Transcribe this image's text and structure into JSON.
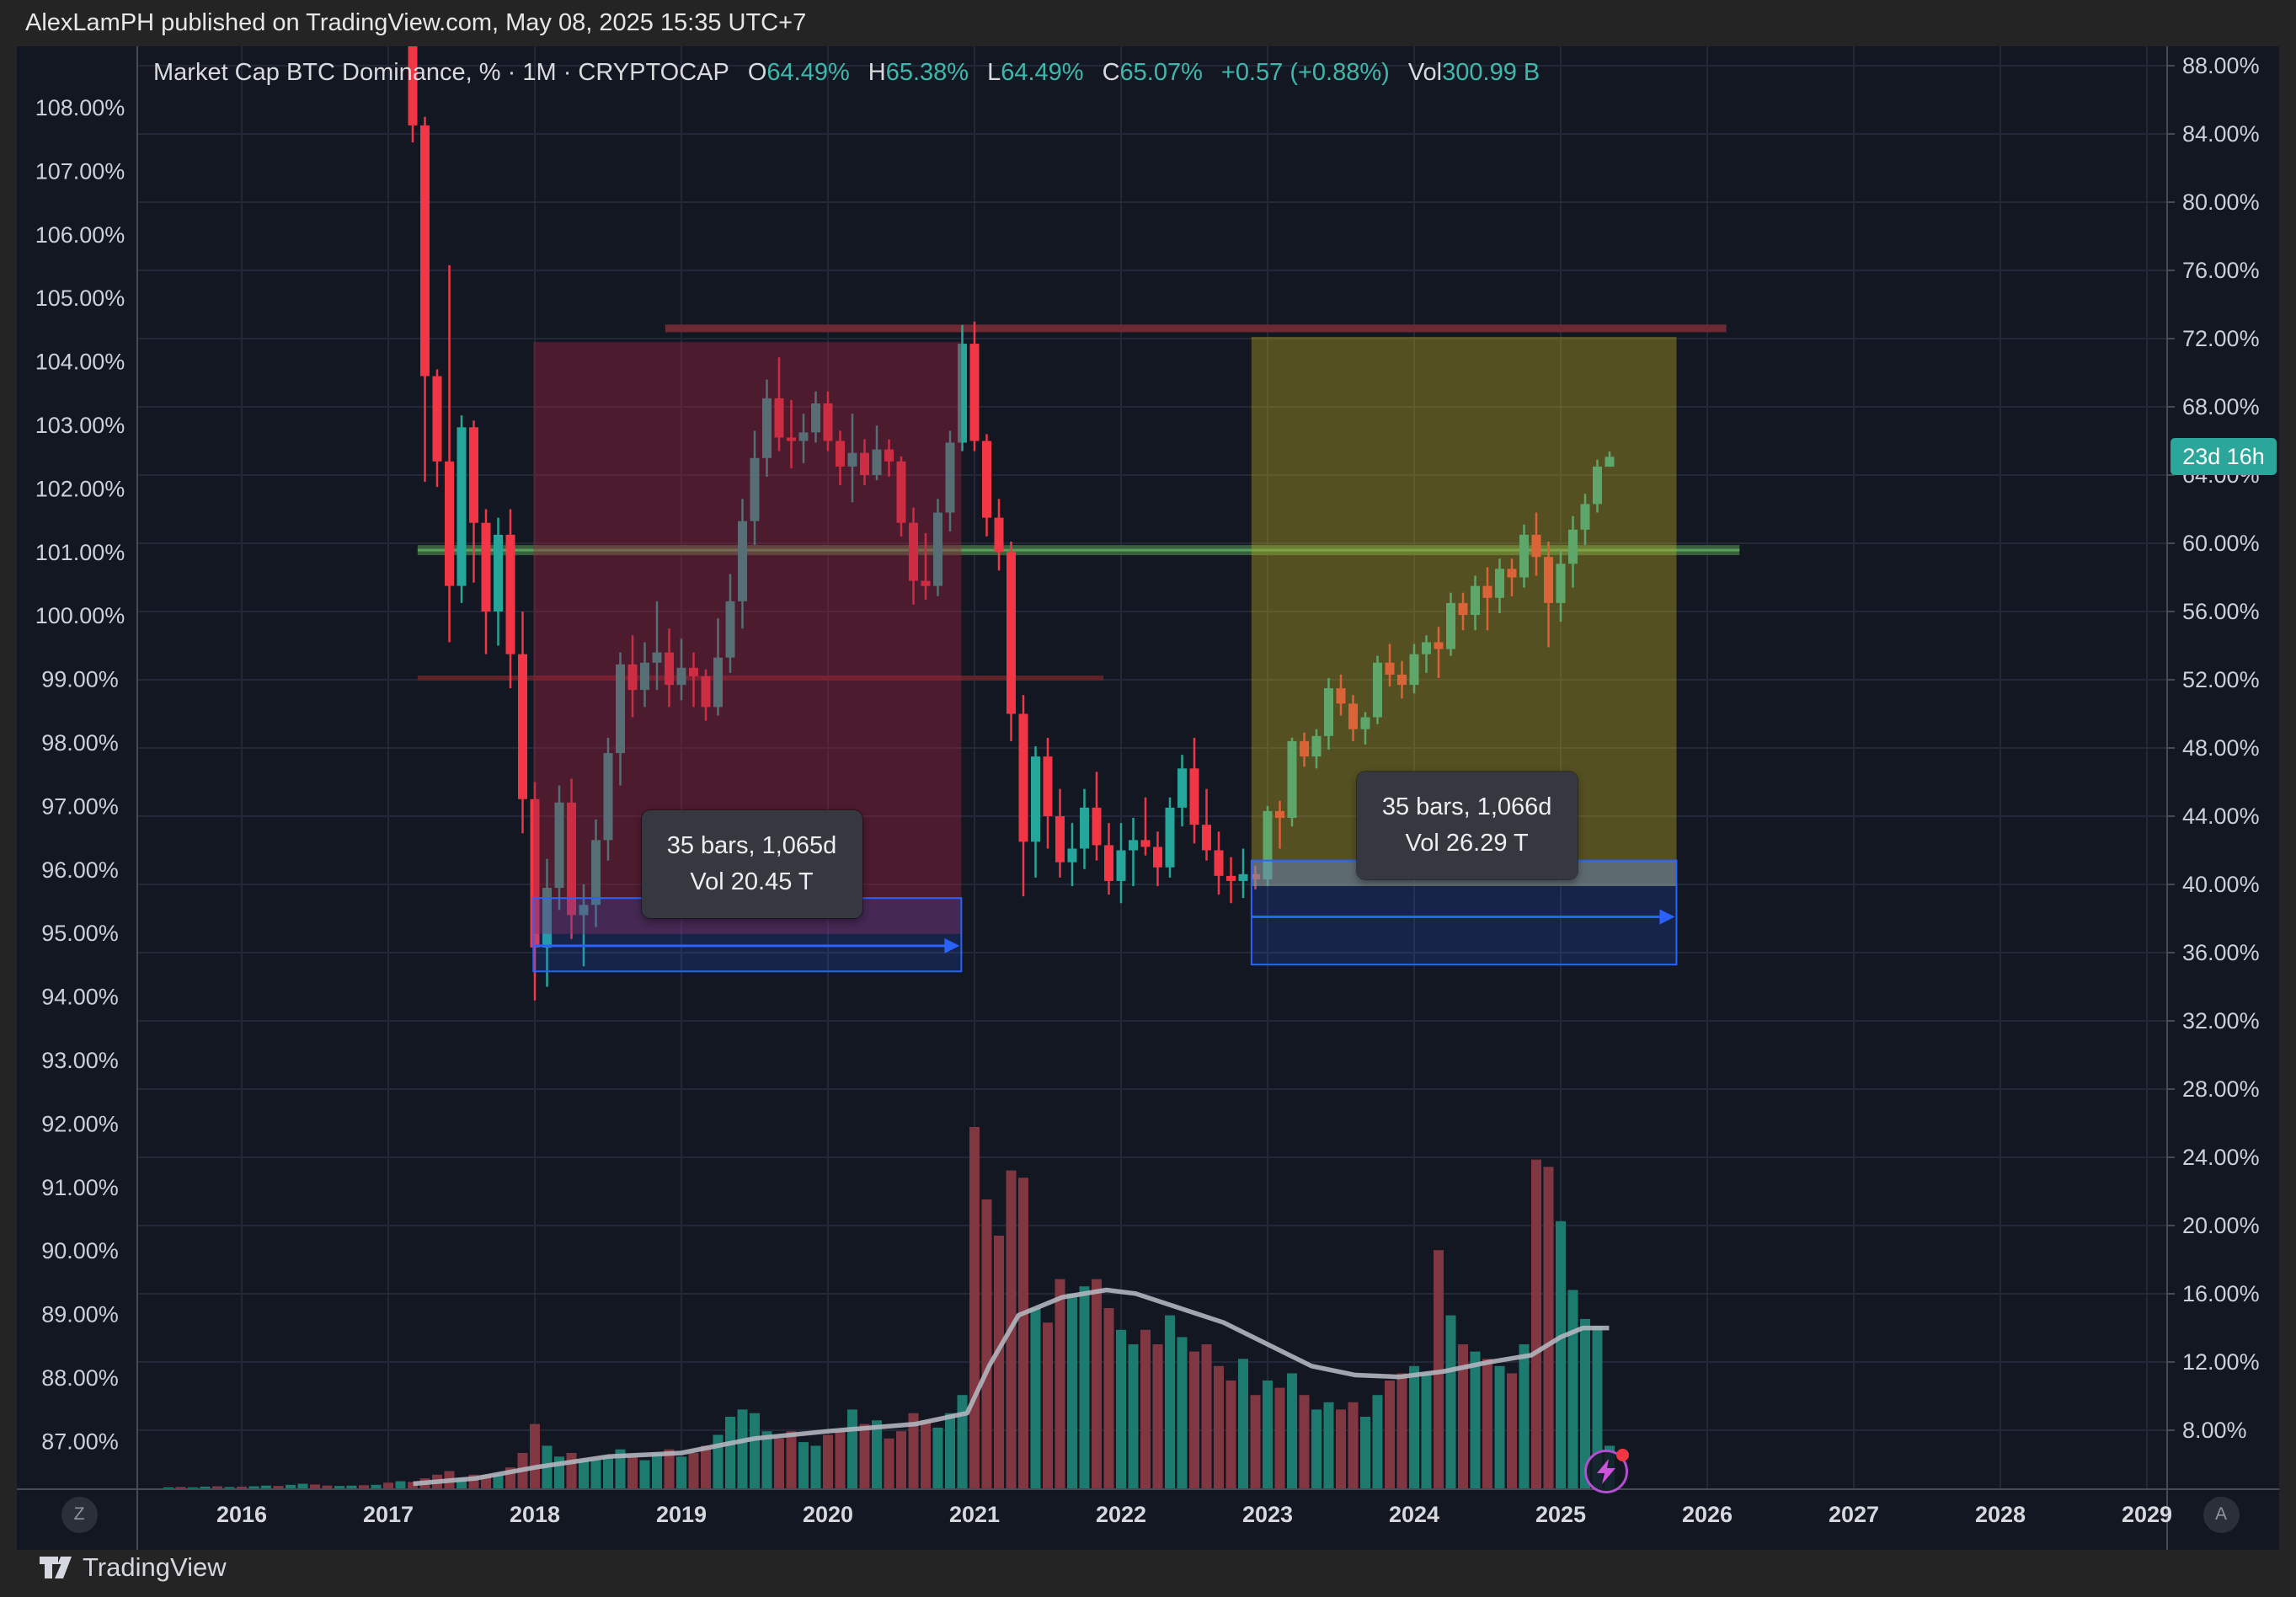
{
  "header": {
    "published_line": "AlexLamPH published on TradingView.com, May 08, 2025 15:35 UTC+7"
  },
  "legend": {
    "title_full": "Market Cap BTC Dominance, % · 1M · CRYPTOCAP",
    "o_label": "O",
    "o": "64.49%",
    "h_label": "H",
    "h": "65.38%",
    "l_label": "L",
    "l": "64.49%",
    "c_label": "C",
    "c": "65.07%",
    "change": "+0.57 (+0.88%)",
    "vol_label": "Vol",
    "vol": "300.99 B"
  },
  "badge": {
    "text": "23d 16h",
    "color": "#2aa79a",
    "value": 65.07
  },
  "buttons": {
    "z_label": "Z",
    "a_label": "A"
  },
  "logo": {
    "text": "TradingView"
  },
  "measurements": [
    {
      "line1": "35 bars, 1,065d",
      "line2": "Vol 20.45 T",
      "anchor_year": 2019.48,
      "anchor_value": 41.2
    },
    {
      "line1": "35 bars, 1,066d",
      "line2": "Vol 26.29 T",
      "anchor_year": 2024.36,
      "anchor_value": 43.45
    }
  ],
  "colors": {
    "pane_bg": "#131722",
    "frame_bg": "#242424",
    "grid": "#232838",
    "border": "#464a54",
    "axis_text": "#ccd0da",
    "year_text": "#d6d8de",
    "candle_up": "#26a69a",
    "candle_down": "#f23645",
    "vol_up": "#1d7a6e",
    "vol_down": "#803741",
    "vol_ma": "#b2b5be",
    "measure_blue": "#2962ff",
    "measure_blue_fill": "rgba(41,98,255,0.18)",
    "box_bear_fill": "rgba(156,34,64,0.42)",
    "box_bull_fill": "rgba(183,168,35,0.40)",
    "gray_band_fill": "rgba(150,160,170,0.35)",
    "hline_dark_red": "#6e2a33",
    "hline_green_band": "#3a5f3f",
    "hline_green_core": "#66bb6a",
    "hline_red_short": "#5f2228"
  },
  "chart_data": {
    "type": "candlestick",
    "title": "Market Cap BTC Dominance",
    "unit": "%",
    "interval": "1M",
    "exchange": "CRYPTOCAP",
    "legend_note": "grid on; left and right percent scales; volume pane at bottom",
    "right_axis": {
      "ticks_from": 88,
      "ticks_to": 8,
      "step": -4,
      "unit": "%"
    },
    "left_axis": {
      "ticks_from": 108,
      "ticks_to": 87,
      "step": -1,
      "unit": "%"
    },
    "x_years": [
      2016,
      2017,
      2018,
      2019,
      2020,
      2021,
      2022,
      2023,
      2024,
      2025,
      2026,
      2027,
      2028,
      2029
    ],
    "candles_format": [
      "date",
      "open",
      "high",
      "low",
      "close",
      "volume_rel"
    ],
    "candles": [
      [
        "2017-03",
        89.5,
        90.0,
        83.5,
        84.5,
        2
      ],
      [
        "2017-04",
        84.5,
        85.0,
        63.6,
        69.8,
        3
      ],
      [
        "2017-05",
        69.8,
        70.2,
        63.3,
        64.8,
        4
      ],
      [
        "2017-06",
        64.8,
        76.3,
        54.2,
        57.5,
        5
      ],
      [
        "2017-07",
        57.5,
        67.5,
        56.5,
        66.8,
        3
      ],
      [
        "2017-08",
        66.8,
        67.2,
        57.7,
        61.2,
        4
      ],
      [
        "2017-09",
        61.2,
        62.0,
        53.5,
        56.0,
        4
      ],
      [
        "2017-10",
        56.0,
        61.5,
        54.0,
        60.5,
        4
      ],
      [
        "2017-11",
        60.5,
        62.0,
        51.5,
        53.5,
        6
      ],
      [
        "2017-12",
        53.5,
        56.0,
        43.0,
        45.0,
        10
      ],
      [
        "2018-01",
        45.0,
        46.0,
        33.2,
        36.3,
        18
      ],
      [
        "2018-02",
        36.3,
        41.5,
        34.0,
        39.8,
        12
      ],
      [
        "2018-03",
        39.8,
        45.8,
        38.5,
        44.8,
        9
      ],
      [
        "2018-04",
        44.8,
        46.2,
        36.8,
        38.2,
        10
      ],
      [
        "2018-05",
        38.2,
        40.0,
        35.2,
        38.8,
        8
      ],
      [
        "2018-06",
        38.8,
        43.8,
        37.5,
        42.6,
        8
      ],
      [
        "2018-07",
        42.6,
        48.6,
        41.4,
        47.7,
        9
      ],
      [
        "2018-08",
        47.7,
        53.6,
        45.8,
        52.9,
        11
      ],
      [
        "2018-09",
        52.9,
        54.6,
        49.8,
        51.4,
        9
      ],
      [
        "2018-10",
        51.4,
        54.2,
        50.4,
        53.0,
        8
      ],
      [
        "2018-11",
        53.0,
        56.6,
        51.4,
        53.6,
        10
      ],
      [
        "2018-12",
        53.6,
        55.0,
        50.4,
        51.7,
        11
      ],
      [
        "2019-01",
        51.7,
        54.4,
        50.8,
        52.7,
        9
      ],
      [
        "2019-02",
        52.7,
        53.6,
        50.4,
        52.2,
        10
      ],
      [
        "2019-03",
        52.2,
        52.6,
        49.6,
        50.4,
        12
      ],
      [
        "2019-04",
        50.4,
        55.6,
        49.9,
        53.3,
        15
      ],
      [
        "2019-05",
        53.3,
        58.2,
        52.4,
        56.6,
        20
      ],
      [
        "2019-06",
        56.6,
        62.6,
        55.0,
        61.3,
        22
      ],
      [
        "2019-07",
        61.3,
        66.6,
        59.9,
        65.0,
        21
      ],
      [
        "2019-08",
        65.0,
        69.6,
        63.9,
        68.5,
        16
      ],
      [
        "2019-09",
        68.5,
        70.9,
        65.4,
        66.2,
        14
      ],
      [
        "2019-10",
        66.2,
        68.4,
        64.4,
        66.0,
        16
      ],
      [
        "2019-11",
        66.0,
        67.6,
        64.7,
        66.5,
        13
      ],
      [
        "2019-12",
        66.5,
        68.9,
        65.9,
        68.2,
        12
      ],
      [
        "2020-01",
        68.2,
        68.9,
        65.4,
        66.0,
        15
      ],
      [
        "2020-02",
        66.0,
        66.6,
        63.4,
        64.5,
        16
      ],
      [
        "2020-03",
        64.5,
        67.6,
        62.4,
        65.3,
        22
      ],
      [
        "2020-04",
        65.3,
        66.1,
        63.4,
        64.0,
        18
      ],
      [
        "2020-05",
        64.0,
        66.9,
        63.7,
        65.5,
        19
      ],
      [
        "2020-06",
        65.5,
        66.1,
        63.9,
        64.8,
        14
      ],
      [
        "2020-07",
        64.8,
        65.1,
        60.4,
        61.2,
        16
      ],
      [
        "2020-08",
        61.2,
        62.1,
        56.4,
        57.8,
        21
      ],
      [
        "2020-09",
        57.8,
        60.6,
        56.7,
        57.5,
        19
      ],
      [
        "2020-10",
        57.5,
        62.6,
        56.9,
        61.8,
        17
      ],
      [
        "2020-11",
        61.8,
        66.6,
        60.7,
        65.9,
        21
      ],
      [
        "2020-12",
        65.9,
        72.8,
        65.4,
        71.7,
        26
      ],
      [
        "2021-01",
        71.7,
        73.0,
        65.4,
        66.0,
        100
      ],
      [
        "2021-02",
        66.0,
        66.4,
        60.4,
        61.5,
        80
      ],
      [
        "2021-03",
        61.5,
        62.6,
        58.4,
        59.5,
        70
      ],
      [
        "2021-04",
        59.5,
        60.1,
        48.4,
        50.0,
        88
      ],
      [
        "2021-05",
        50.0,
        51.1,
        39.3,
        42.5,
        86
      ],
      [
        "2021-06",
        42.5,
        48.1,
        40.4,
        47.5,
        50
      ],
      [
        "2021-07",
        47.5,
        48.6,
        42.1,
        44.0,
        46
      ],
      [
        "2021-08",
        44.0,
        45.6,
        40.4,
        41.3,
        58
      ],
      [
        "2021-09",
        41.3,
        43.6,
        39.9,
        42.1,
        54
      ],
      [
        "2021-10",
        42.1,
        45.6,
        40.9,
        44.5,
        56
      ],
      [
        "2021-11",
        44.5,
        46.6,
        41.4,
        42.3,
        58
      ],
      [
        "2021-12",
        42.3,
        43.6,
        39.4,
        40.2,
        50
      ],
      [
        "2022-01",
        40.2,
        43.6,
        38.9,
        42.0,
        44
      ],
      [
        "2022-02",
        42.0,
        43.9,
        39.9,
        42.6,
        40
      ],
      [
        "2022-03",
        42.6,
        45.1,
        41.7,
        42.2,
        44
      ],
      [
        "2022-04",
        42.2,
        43.1,
        39.9,
        41.0,
        40
      ],
      [
        "2022-05",
        41.0,
        45.1,
        40.4,
        44.5,
        48
      ],
      [
        "2022-06",
        44.5,
        47.6,
        43.4,
        46.8,
        42
      ],
      [
        "2022-07",
        46.8,
        48.6,
        42.4,
        43.5,
        38
      ],
      [
        "2022-08",
        43.5,
        45.6,
        41.4,
        42.0,
        40
      ],
      [
        "2022-09",
        42.0,
        43.1,
        39.4,
        40.5,
        34
      ],
      [
        "2022-10",
        40.5,
        41.6,
        38.9,
        40.2,
        30
      ],
      [
        "2022-11",
        40.2,
        42.1,
        39.2,
        40.6,
        36
      ],
      [
        "2022-12",
        40.6,
        41.1,
        39.7,
        40.3,
        26
      ],
      [
        "2023-01",
        40.3,
        44.6,
        39.9,
        44.3,
        30
      ],
      [
        "2023-02",
        44.3,
        44.9,
        42.1,
        43.9,
        28
      ],
      [
        "2023-03",
        43.9,
        48.6,
        43.4,
        48.4,
        32
      ],
      [
        "2023-04",
        48.4,
        48.9,
        46.9,
        47.5,
        26
      ],
      [
        "2023-05",
        47.5,
        49.1,
        46.8,
        48.7,
        22
      ],
      [
        "2023-06",
        48.7,
        52.1,
        47.9,
        51.5,
        24
      ],
      [
        "2023-07",
        51.5,
        52.3,
        49.9,
        50.6,
        22
      ],
      [
        "2023-08",
        50.6,
        51.1,
        48.4,
        49.1,
        24
      ],
      [
        "2023-09",
        49.1,
        50.1,
        48.2,
        49.8,
        20
      ],
      [
        "2023-10",
        49.8,
        53.4,
        49.4,
        53.0,
        26
      ],
      [
        "2023-11",
        53.0,
        54.1,
        51.6,
        52.3,
        30
      ],
      [
        "2023-12",
        52.3,
        53.1,
        50.9,
        51.7,
        32
      ],
      [
        "2024-01",
        51.7,
        54.1,
        51.2,
        53.5,
        34
      ],
      [
        "2024-02",
        53.5,
        54.6,
        52.4,
        54.2,
        32
      ],
      [
        "2024-03",
        54.2,
        55.1,
        52.1,
        53.8,
        66
      ],
      [
        "2024-04",
        53.8,
        57.1,
        53.4,
        56.5,
        48
      ],
      [
        "2024-05",
        56.5,
        57.1,
        54.9,
        55.8,
        40
      ],
      [
        "2024-06",
        55.8,
        58.1,
        54.9,
        57.5,
        38
      ],
      [
        "2024-07",
        57.5,
        58.6,
        54.9,
        56.8,
        36
      ],
      [
        "2024-08",
        56.8,
        59.1,
        55.9,
        58.5,
        34
      ],
      [
        "2024-09",
        58.5,
        59.1,
        56.9,
        58.0,
        32
      ],
      [
        "2024-10",
        58.0,
        61.1,
        57.4,
        60.5,
        40
      ],
      [
        "2024-11",
        60.5,
        61.8,
        58.1,
        59.2,
        91
      ],
      [
        "2024-12",
        59.2,
        60.1,
        53.9,
        56.5,
        89
      ],
      [
        "2025-01",
        56.5,
        59.6,
        55.4,
        58.8,
        74
      ],
      [
        "2025-02",
        58.8,
        61.6,
        57.4,
        60.8,
        55
      ],
      [
        "2025-03",
        60.8,
        62.9,
        59.9,
        62.3,
        47
      ],
      [
        "2025-04",
        62.3,
        64.9,
        61.8,
        64.5,
        45
      ],
      [
        "2025-05",
        64.49,
        65.38,
        64.49,
        65.07,
        12
      ]
    ],
    "pre_volume": [
      [
        "2015-07",
        0.5,
        "up"
      ],
      [
        "2015-08",
        0.6,
        "down"
      ],
      [
        "2015-09",
        0.5,
        "up"
      ],
      [
        "2015-10",
        0.7,
        "up"
      ],
      [
        "2015-11",
        0.8,
        "down"
      ],
      [
        "2015-12",
        0.6,
        "up"
      ],
      [
        "2016-01",
        0.7,
        "down"
      ],
      [
        "2016-02",
        0.8,
        "up"
      ],
      [
        "2016-03",
        1.0,
        "up"
      ],
      [
        "2016-04",
        0.9,
        "down"
      ],
      [
        "2016-05",
        1.2,
        "up"
      ],
      [
        "2016-06",
        1.5,
        "up"
      ],
      [
        "2016-07",
        1.3,
        "down"
      ],
      [
        "2016-08",
        1.0,
        "down"
      ],
      [
        "2016-09",
        0.9,
        "up"
      ],
      [
        "2016-10",
        1.0,
        "up"
      ],
      [
        "2016-11",
        1.1,
        "down"
      ],
      [
        "2016-12",
        1.2,
        "up"
      ],
      [
        "2017-01",
        1.8,
        "down"
      ],
      [
        "2017-02",
        2.2,
        "up"
      ]
    ],
    "volume_ma_rel": [
      [
        2017.17,
        1.5
      ],
      [
        2017.6,
        3
      ],
      [
        2018.0,
        6
      ],
      [
        2018.5,
        9
      ],
      [
        2019.0,
        10
      ],
      [
        2019.5,
        14
      ],
      [
        2020.0,
        16
      ],
      [
        2020.6,
        18
      ],
      [
        2020.95,
        21
      ],
      [
        2021.1,
        34
      ],
      [
        2021.3,
        48
      ],
      [
        2021.6,
        53
      ],
      [
        2021.9,
        55
      ],
      [
        2022.1,
        54
      ],
      [
        2022.4,
        50
      ],
      [
        2022.7,
        46
      ],
      [
        2023.0,
        40
      ],
      [
        2023.3,
        34
      ],
      [
        2023.6,
        31.5
      ],
      [
        2023.9,
        31
      ],
      [
        2024.2,
        32.5
      ],
      [
        2024.5,
        35
      ],
      [
        2024.8,
        37
      ],
      [
        2025.0,
        42
      ],
      [
        2025.15,
        44.5
      ],
      [
        2025.33,
        44.5
      ]
    ],
    "hlines": [
      {
        "name": "resistance-line-dark-red",
        "value": 72.6,
        "from_year": 2018.89,
        "to_year": 2026.13,
        "width": 9
      },
      {
        "name": "support-line-green",
        "value": 59.6,
        "from_year": 2017.2,
        "to_year": 2026.22,
        "width": 12
      },
      {
        "name": "mid-line-red-short",
        "value": 52.1,
        "from_year": 2017.2,
        "to_year": 2021.88,
        "width": 6
      }
    ],
    "boxes": [
      {
        "name": "bearish-range-box",
        "from_year": 2017.99,
        "to_year": 2020.91,
        "top": 71.8,
        "bottom": 37.1,
        "role": "bear"
      },
      {
        "name": "bullish-range-box",
        "from_year": 2022.89,
        "to_year": 2025.79,
        "top": 72.1,
        "bottom": 39.9,
        "role": "bull"
      },
      {
        "name": "gray-band",
        "from_year": 2022.89,
        "to_year": 2025.79,
        "top": 41.4,
        "bottom": 39.9,
        "role": "gray"
      }
    ],
    "measure_boxes": [
      {
        "from_year": 2017.99,
        "to_year": 2020.91,
        "top": 39.2,
        "bottom": 34.9,
        "arrow_value": 36.4
      },
      {
        "from_year": 2022.89,
        "to_year": 2025.79,
        "top": 41.4,
        "bottom": 35.3,
        "arrow_value": 38.1
      }
    ]
  }
}
